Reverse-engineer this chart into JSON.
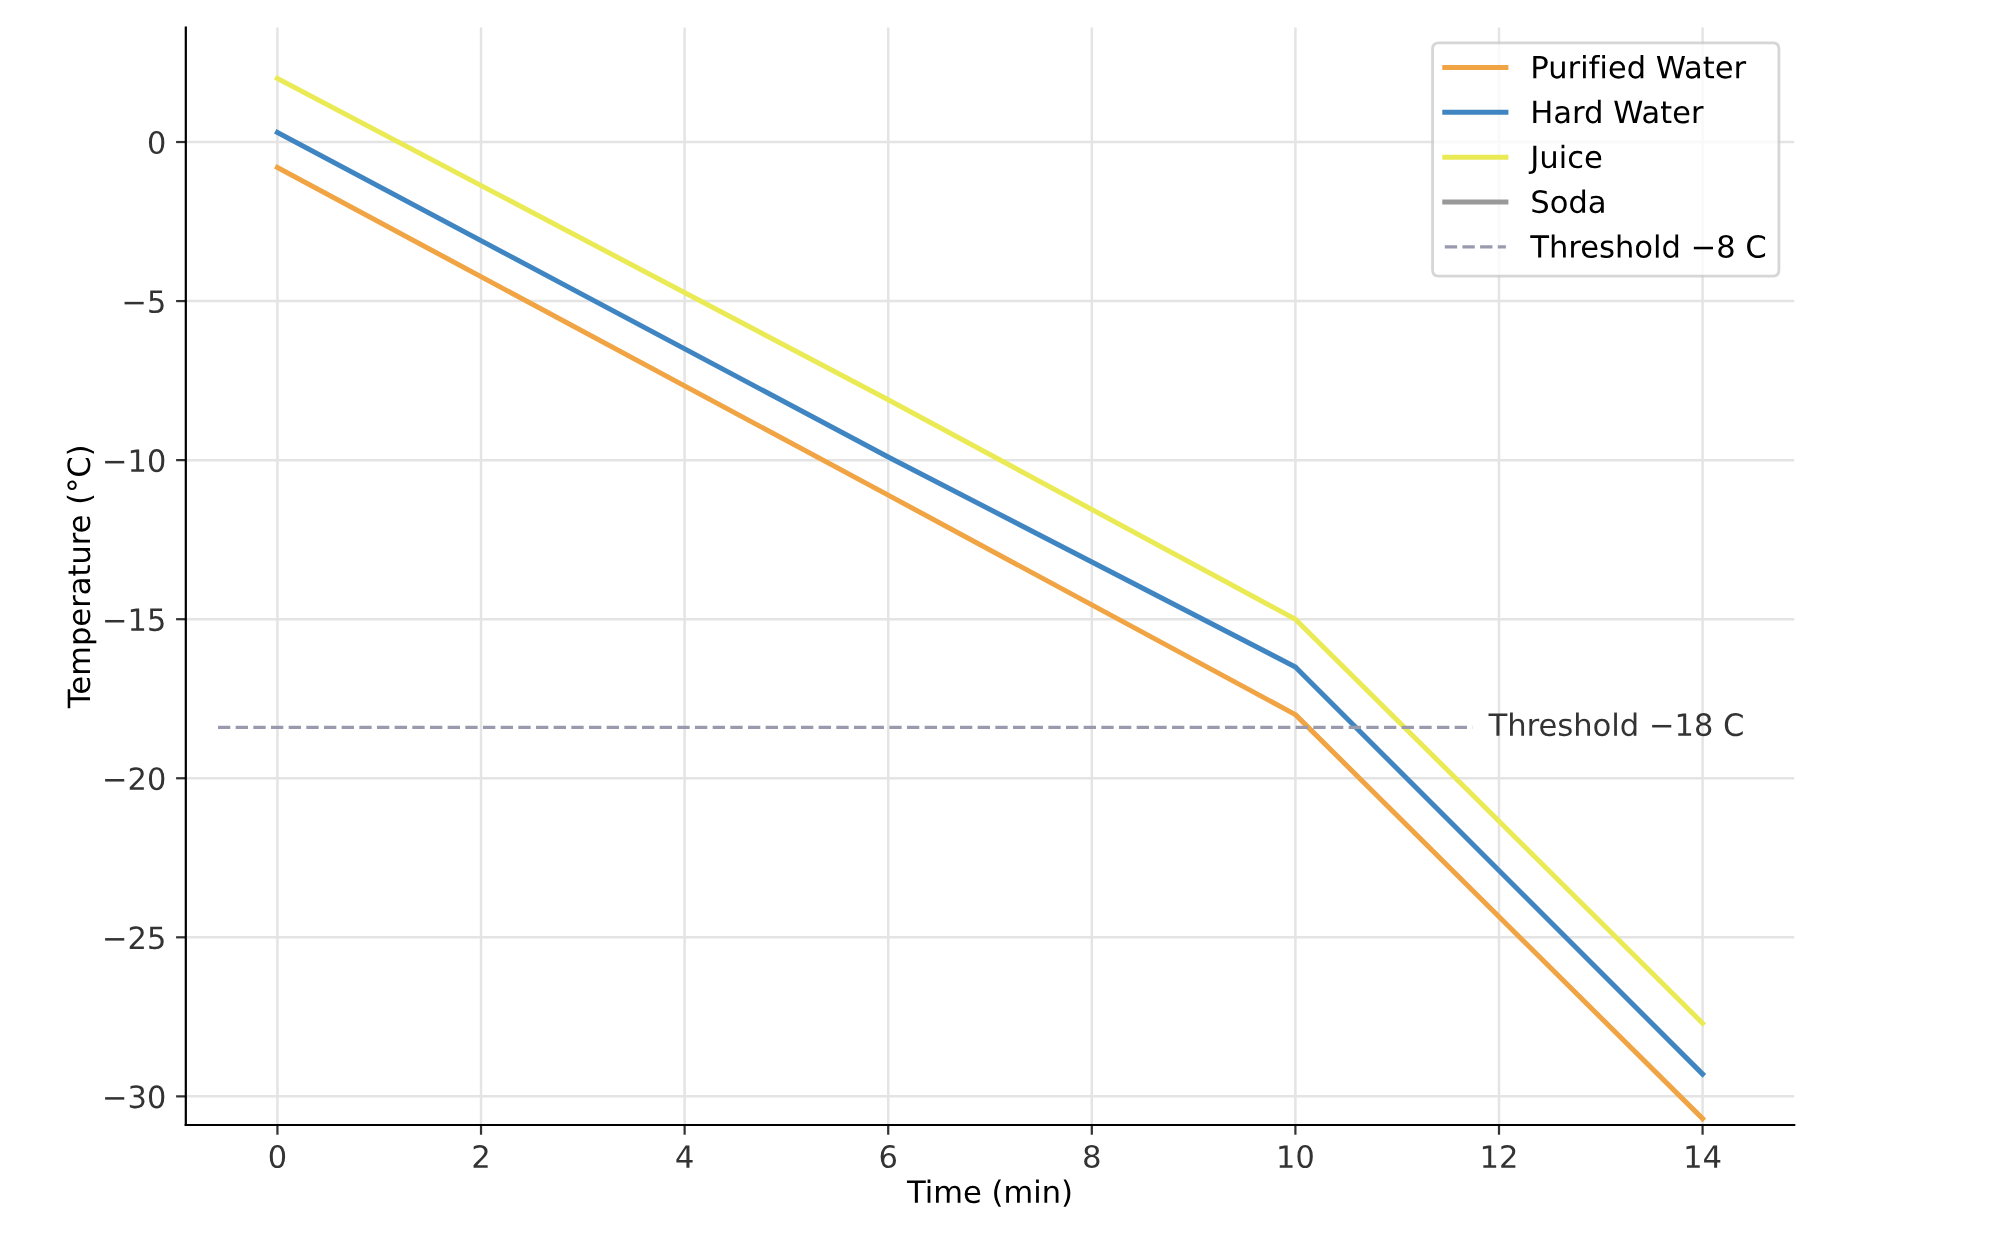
{
  "chart_data": {
    "type": "line",
    "xlabel": "Time (min)",
    "ylabel": "Temperature (°C)",
    "xlim": [
      -0.9,
      14.9
    ],
    "ylim": [
      -30.9,
      3.6
    ],
    "xticks": [
      0,
      2,
      4,
      6,
      8,
      10,
      12,
      14
    ],
    "yticks": [
      0,
      -5,
      -10,
      -15,
      -20,
      -25,
      -30
    ],
    "x": [
      0,
      6,
      10,
      14
    ],
    "series": [
      {
        "name": "Purified Water",
        "color": "#f0a443",
        "values": [
          -0.8,
          -11.1,
          -18.0,
          -30.7
        ]
      },
      {
        "name": "Hard Water",
        "color": "#3f85c2",
        "values": [
          0.3,
          -9.9,
          -16.5,
          -29.3
        ]
      },
      {
        "name": "Juice",
        "color": "#eaea55",
        "values": [
          2.0,
          -8.1,
          -15.0,
          -27.7
        ]
      },
      {
        "name": "Soda",
        "color": "#999999",
        "values": [
          null,
          null,
          null,
          null
        ]
      }
    ],
    "ref_lines": [
      {
        "axis": "y",
        "value": -18.4,
        "label": "Threshold −8 C",
        "color": "#9a9aae",
        "line_style": "dashed"
      }
    ],
    "annotations": [
      "Threshold −18 C"
    ],
    "grid": true,
    "legend": "top right",
    "marker": "none",
    "line_style": "solid"
  }
}
